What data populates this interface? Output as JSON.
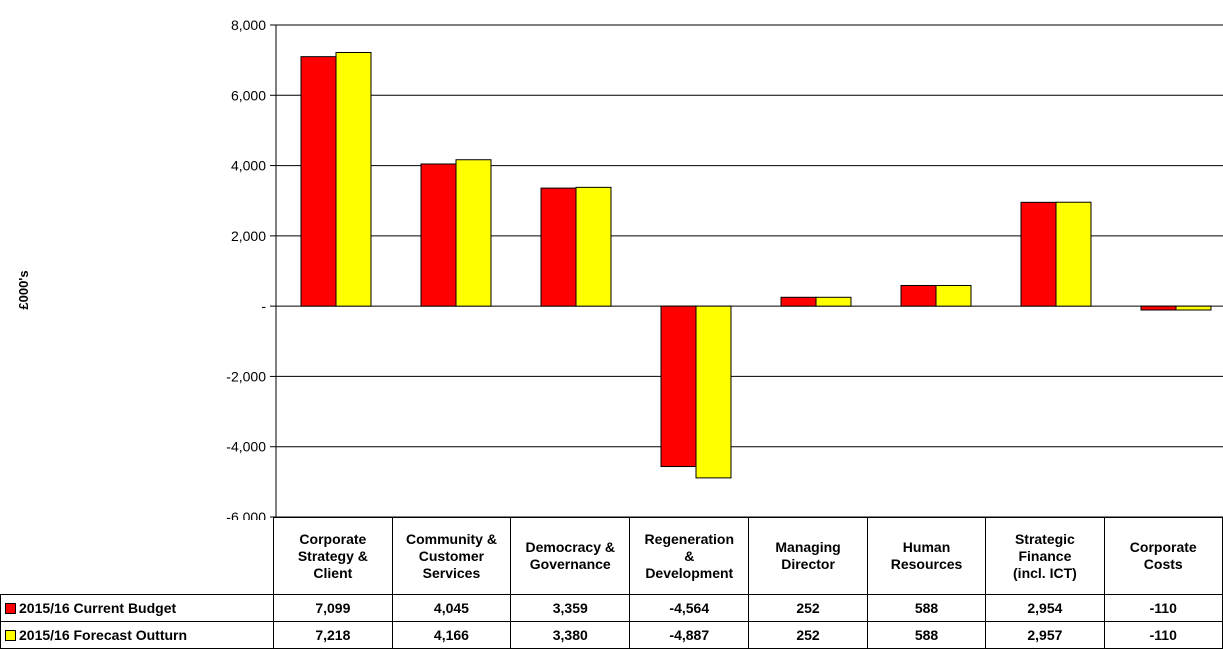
{
  "chart_data": {
    "type": "bar",
    "ylabel": "£000's",
    "ylim": [
      -6000,
      8000
    ],
    "yticks": [
      8000,
      6000,
      4000,
      2000,
      0,
      -2000,
      -4000,
      -6000
    ],
    "ytick_labels": [
      "8,000",
      "6,000",
      "4,000",
      "2,000",
      "-",
      "-2,000",
      "-4,000",
      "-6,000"
    ],
    "grid": true,
    "legend": "data-table",
    "categories": [
      "Corporate Strategy & Client",
      "Community & Customer Services",
      "Democracy & Governance",
      "Regeneration & Development",
      "Managing Director",
      "Human Resources",
      "Strategic Finance (incl. ICT)",
      "Corporate Costs"
    ],
    "category_lines": [
      [
        "Corporate",
        "Strategy &",
        "Client"
      ],
      [
        "Community &",
        "Customer",
        "Services"
      ],
      [
        "Democracy &",
        "Governance"
      ],
      [
        "Regeneration",
        "&",
        "Development"
      ],
      [
        "Managing",
        "Director"
      ],
      [
        "Human",
        "Resources"
      ],
      [
        "Strategic",
        "Finance",
        "(incl. ICT)"
      ],
      [
        "Corporate",
        "Costs"
      ]
    ],
    "series": [
      {
        "name": "2015/16 Current Budget",
        "color": "#ff0000",
        "values": [
          7099,
          4045,
          3359,
          -4564,
          252,
          588,
          2954,
          -110
        ],
        "labels": [
          "7,099",
          "4,045",
          "3,359",
          "-4,564",
          "252",
          "588",
          "2,954",
          "-110"
        ]
      },
      {
        "name": "2015/16 Forecast Outturn",
        "color": "#ffff00",
        "values": [
          7218,
          4166,
          3380,
          -4887,
          252,
          588,
          2957,
          -110
        ],
        "labels": [
          "7,218",
          "4,166",
          "3,380",
          "-4,887",
          "252",
          "588",
          "2,957",
          "-110"
        ]
      }
    ]
  }
}
